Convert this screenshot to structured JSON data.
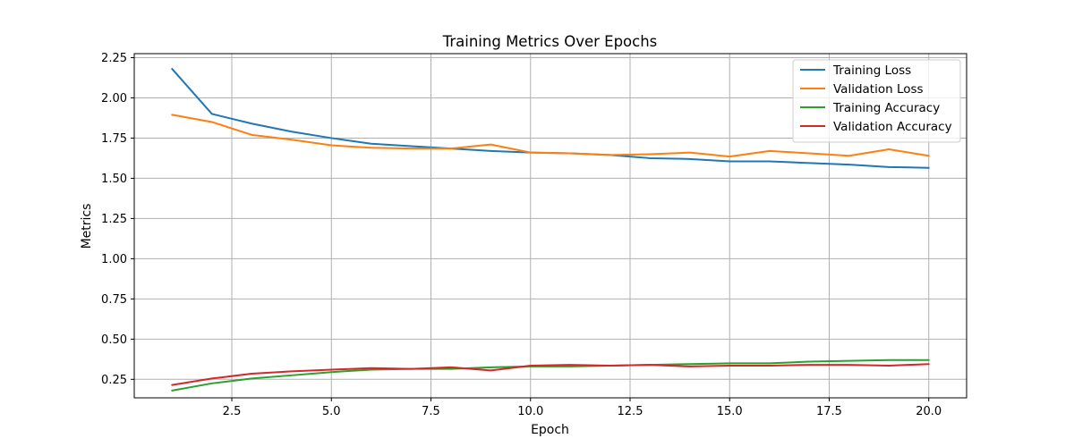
{
  "chart_data": {
    "type": "line",
    "title": "Training Metrics Over Epochs",
    "xlabel": "Epoch",
    "ylabel": "Metrics",
    "xlim": [
      0.05,
      20.95
    ],
    "ylim": [
      0.135,
      2.275
    ],
    "xticks": [
      2.5,
      5.0,
      7.5,
      10.0,
      12.5,
      15.0,
      17.5,
      20.0
    ],
    "xtick_labels": [
      "2.5",
      "5.0",
      "7.5",
      "10.0",
      "12.5",
      "15.0",
      "17.5",
      "20.0"
    ],
    "yticks": [
      0.25,
      0.5,
      0.75,
      1.0,
      1.25,
      1.5,
      1.75,
      2.0,
      2.25
    ],
    "ytick_labels": [
      "0.25",
      "0.50",
      "0.75",
      "1.00",
      "1.25",
      "1.50",
      "1.75",
      "2.00",
      "2.25"
    ],
    "grid": true,
    "legend_position": "top-right",
    "x": [
      1,
      2,
      3,
      4,
      5,
      6,
      7,
      8,
      9,
      10,
      11,
      12,
      13,
      14,
      15,
      16,
      17,
      18,
      19,
      20
    ],
    "series": [
      {
        "name": "Training Loss",
        "color": "#1f77b4",
        "values": [
          2.18,
          1.9,
          1.84,
          1.79,
          1.75,
          1.715,
          1.7,
          1.685,
          1.67,
          1.66,
          1.655,
          1.645,
          1.625,
          1.62,
          1.605,
          1.605,
          1.595,
          1.585,
          1.57,
          1.565
        ]
      },
      {
        "name": "Validation Loss",
        "color": "#ff7f0e",
        "values": [
          1.895,
          1.85,
          1.77,
          1.74,
          1.705,
          1.69,
          1.685,
          1.685,
          1.71,
          1.66,
          1.655,
          1.645,
          1.65,
          1.66,
          1.635,
          1.67,
          1.655,
          1.64,
          1.68,
          1.64
        ]
      },
      {
        "name": "Training Accuracy",
        "color": "#2ca02c",
        "values": [
          0.18,
          0.225,
          0.255,
          0.275,
          0.295,
          0.31,
          0.315,
          0.315,
          0.325,
          0.33,
          0.33,
          0.335,
          0.34,
          0.345,
          0.35,
          0.35,
          0.36,
          0.365,
          0.37,
          0.37
        ]
      },
      {
        "name": "Validation Accuracy",
        "color": "#d62728",
        "values": [
          0.215,
          0.255,
          0.285,
          0.3,
          0.31,
          0.32,
          0.315,
          0.325,
          0.305,
          0.335,
          0.34,
          0.335,
          0.34,
          0.33,
          0.335,
          0.335,
          0.34,
          0.34,
          0.335,
          0.345
        ]
      }
    ]
  }
}
